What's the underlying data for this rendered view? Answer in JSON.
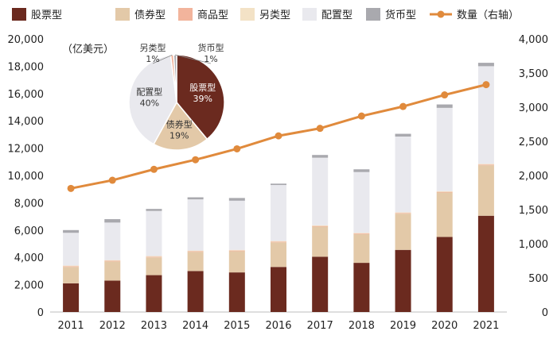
{
  "chart_data": [
    {
      "type": "bar",
      "stacked": true,
      "unit_label": "（亿美元）",
      "categories": [
        "2011",
        "2012",
        "2013",
        "2014",
        "2015",
        "2016",
        "2017",
        "2018",
        "2019",
        "2020",
        "2021"
      ],
      "series": [
        {
          "name": "股票型",
          "color": "#6B2A1F",
          "values": [
            2100,
            2300,
            2700,
            3000,
            2900,
            3300,
            4050,
            3600,
            4550,
            5500,
            7050
          ]
        },
        {
          "name": "债券型",
          "color": "#E3C9A8",
          "values": [
            1200,
            1400,
            1300,
            1400,
            1550,
            1800,
            2200,
            2100,
            2650,
            3250,
            3700
          ]
        },
        {
          "name": "商品型",
          "color": "#F2B49C",
          "values": [
            50,
            50,
            50,
            50,
            50,
            50,
            50,
            50,
            50,
            50,
            50
          ]
        },
        {
          "name": "另类型",
          "color": "#F3E2C6",
          "values": [
            50,
            50,
            50,
            50,
            50,
            50,
            50,
            50,
            50,
            50,
            50
          ]
        },
        {
          "name": "配置型",
          "color": "#E9E9EE",
          "values": [
            2400,
            2750,
            3300,
            3750,
            3600,
            4100,
            4950,
            4450,
            5550,
            6100,
            7150
          ]
        },
        {
          "name": "货币型",
          "color": "#A9A9AE",
          "values": [
            200,
            250,
            150,
            150,
            200,
            100,
            200,
            200,
            200,
            250,
            250
          ]
        }
      ],
      "line": {
        "name": "数量（右轴）",
        "color": "#E08A3C",
        "values": [
          1810,
          1930,
          2090,
          2230,
          2390,
          2580,
          2690,
          2870,
          3010,
          3180,
          3330
        ]
      },
      "ylim": [
        0,
        20000
      ],
      "yticks": [
        "0",
        "2,000",
        "4,000",
        "6,000",
        "8,000",
        "10,000",
        "12,000",
        "14,000",
        "16,000",
        "18,000",
        "20,000"
      ],
      "y2lim": [
        0,
        4000
      ],
      "y2ticks": [
        "0",
        "500",
        "1,000",
        "1,500",
        "2,000",
        "2,500",
        "3,000",
        "3,500",
        "4,000"
      ]
    },
    {
      "type": "pie",
      "slices": [
        {
          "name": "股票型",
          "label": "股票型",
          "pct_label": "39%",
          "value": 39,
          "color": "#6B2A1F",
          "text_color": "#ffffff"
        },
        {
          "name": "债券型",
          "label": "债券型",
          "pct_label": "19%",
          "value": 19,
          "color": "#E3C9A8",
          "text_color": "#333333"
        },
        {
          "name": "配置型",
          "label": "配置型",
          "pct_label": "40%",
          "value": 40,
          "color": "#E9E9EE",
          "text_color": "#333333"
        },
        {
          "name": "另类型",
          "label": "另类型",
          "pct_label": "1%",
          "value": 1,
          "color": "#F2B49C",
          "text_color": "#333333"
        },
        {
          "name": "货币型",
          "label": "货币型",
          "pct_label": "1%",
          "value": 1,
          "color": "#A9A9AE",
          "text_color": "#333333"
        }
      ]
    }
  ],
  "legend": [
    {
      "label": "股票型",
      "color": "#6B2A1F",
      "kind": "box"
    },
    {
      "label": "债券型",
      "color": "#E3C9A8",
      "kind": "box"
    },
    {
      "label": "商品型",
      "color": "#F2B49C",
      "kind": "box"
    },
    {
      "label": "另类型",
      "color": "#F3E2C6",
      "kind": "box"
    },
    {
      "label": "配置型",
      "color": "#E9E9EE",
      "kind": "box"
    },
    {
      "label": "货币型",
      "color": "#A9A9AE",
      "kind": "box"
    },
    {
      "label": "数量（右轴）",
      "color": "#E08A3C",
      "kind": "line"
    }
  ]
}
